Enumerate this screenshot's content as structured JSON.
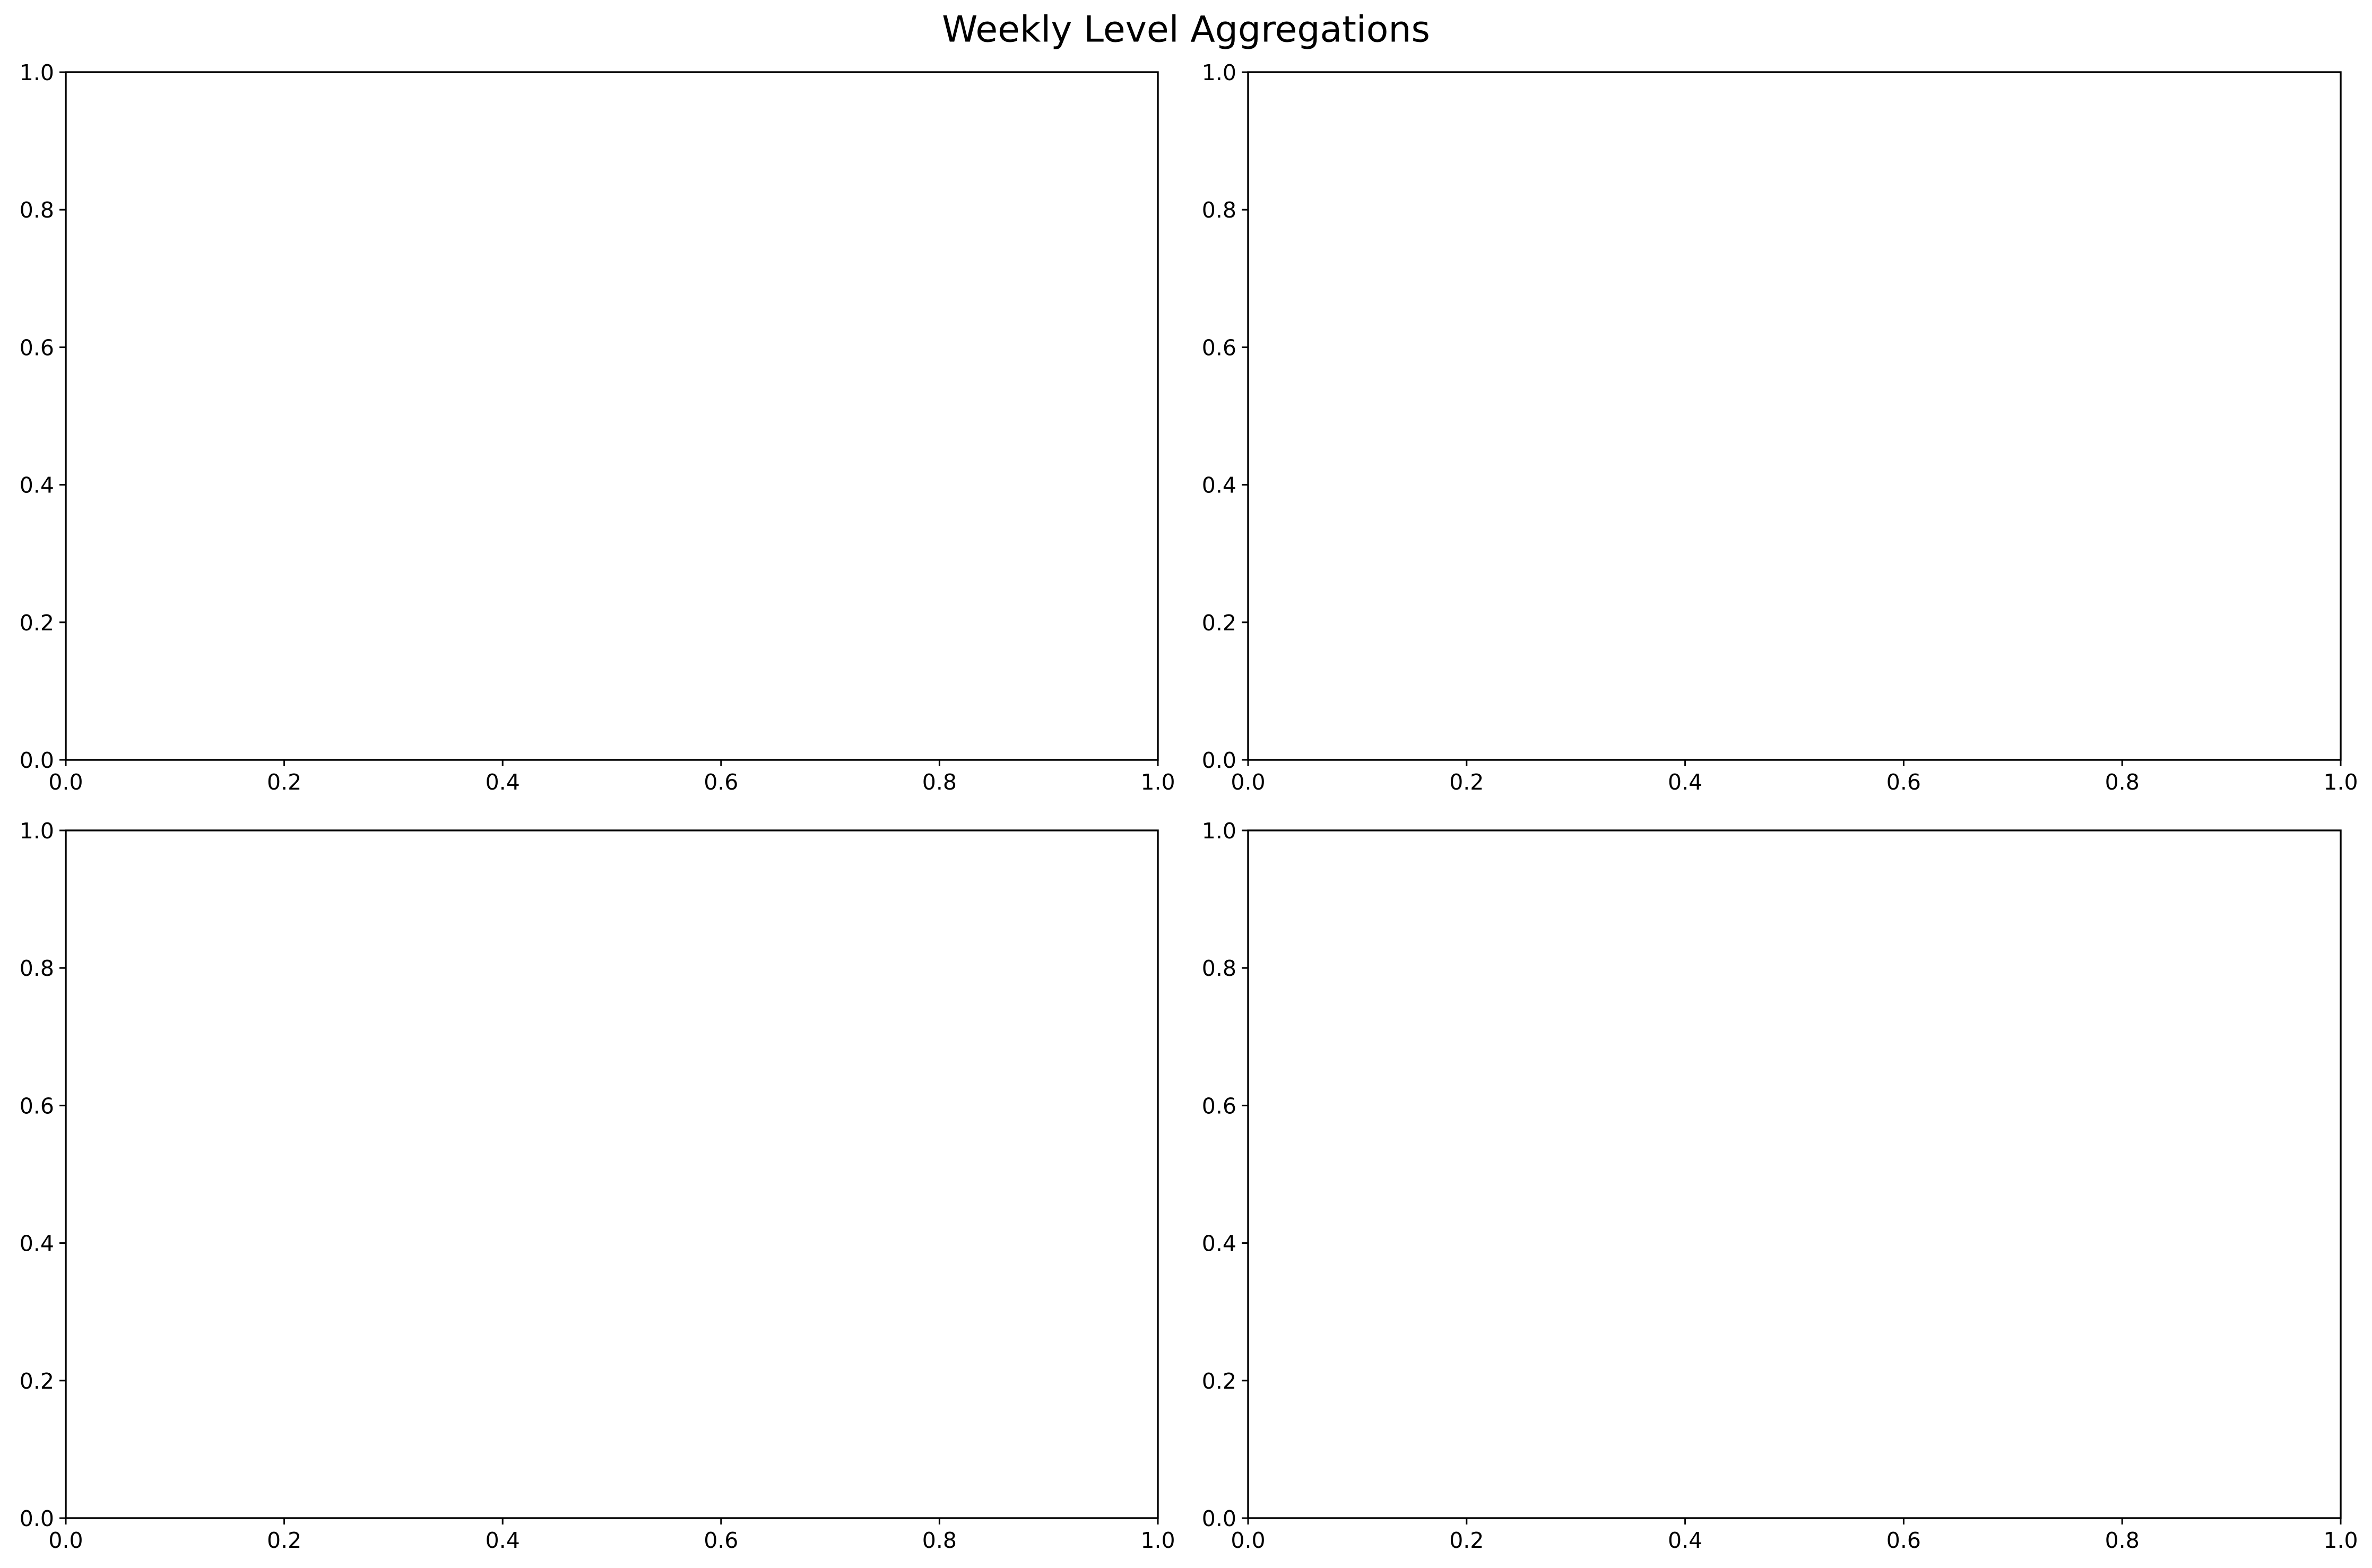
{
  "chart_data": {
    "title": "Weekly Level Aggregations",
    "panels": [
      {
        "type": "line",
        "series": [],
        "xlim": [
          0.0,
          1.0
        ],
        "ylim": [
          0.0,
          1.0
        ],
        "xticks": [
          "0.0",
          "0.2",
          "0.4",
          "0.6",
          "0.8",
          "1.0"
        ],
        "yticks": [
          "0.0",
          "0.2",
          "0.4",
          "0.6",
          "0.8",
          "1.0"
        ],
        "grid": false
      },
      {
        "type": "line",
        "series": [],
        "xlim": [
          0.0,
          1.0
        ],
        "ylim": [
          0.0,
          1.0
        ],
        "xticks": [
          "0.0",
          "0.2",
          "0.4",
          "0.6",
          "0.8",
          "1.0"
        ],
        "yticks": [
          "0.0",
          "0.2",
          "0.4",
          "0.6",
          "0.8",
          "1.0"
        ],
        "grid": false
      },
      {
        "type": "line",
        "series": [],
        "xlim": [
          0.0,
          1.0
        ],
        "ylim": [
          0.0,
          1.0
        ],
        "xticks": [
          "0.0",
          "0.2",
          "0.4",
          "0.6",
          "0.8",
          "1.0"
        ],
        "yticks": [
          "0.0",
          "0.2",
          "0.4",
          "0.6",
          "0.8",
          "1.0"
        ],
        "grid": false
      },
      {
        "type": "line",
        "series": [],
        "xlim": [
          0.0,
          1.0
        ],
        "ylim": [
          0.0,
          1.0
        ],
        "xticks": [
          "0.0",
          "0.2",
          "0.4",
          "0.6",
          "0.8",
          "1.0"
        ],
        "yticks": [
          "0.0",
          "0.2",
          "0.4",
          "0.6",
          "0.8",
          "1.0"
        ],
        "grid": false
      }
    ]
  }
}
